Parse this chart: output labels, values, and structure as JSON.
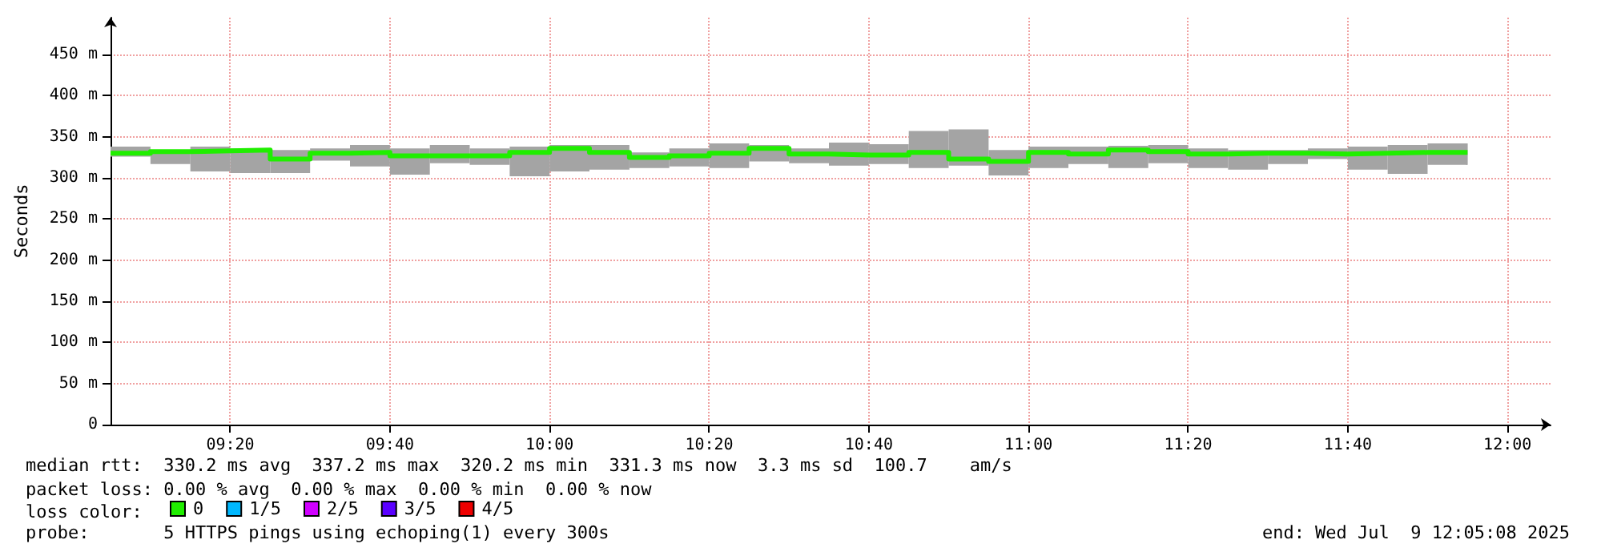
{
  "chart_data": {
    "type": "step",
    "ylabel": "Seconds",
    "legend_title": "loss color:",
    "legend": "bottom",
    "grid": true,
    "annotations": [
      "median rtt:  330.2 ms avg  337.2 ms max  320.2 ms min  331.3 ms now  3.3 ms sd  100.7    am/s",
      "packet loss: 0.00 % avg  0.00 % max  0.00 % min  0.00 % now",
      "probe:       5 HTTPS pings using echoping(1) every 300s",
      "end: Wed Jul  9 12:05:08 2025"
    ],
    "x": [
      9.0833,
      9.1667,
      9.25,
      9.3333,
      9.4167,
      9.5,
      9.5833,
      9.6667,
      9.75,
      9.8333,
      9.9167,
      10,
      10.0833,
      10.1667,
      10.25,
      10.3333,
      10.4167,
      10.5,
      10.5833,
      10.6667,
      10.75,
      10.8333,
      10.9167,
      11,
      11.0833,
      11.1667,
      11.25,
      11.3333,
      11.4167,
      11.5,
      11.5833,
      11.6667,
      11.75,
      11.8333,
      11.9167
    ],
    "xlim": [
      9.0833,
      12.09
    ],
    "xticks": [
      {
        "value": 9.3333,
        "label": "09:20"
      },
      {
        "value": 9.6667,
        "label": "09:40"
      },
      {
        "value": 10,
        "label": "10:00"
      },
      {
        "value": 10.3333,
        "label": "10:20"
      },
      {
        "value": 10.6667,
        "label": "10:40"
      },
      {
        "value": 11,
        "label": "11:00"
      },
      {
        "value": 11.3333,
        "label": "11:20"
      },
      {
        "value": 11.6667,
        "label": "11:40"
      },
      {
        "value": 12,
        "label": "12:00"
      }
    ],
    "ylim": [
      0,
      495
    ],
    "yticks": [
      0,
      {
        "value": 50,
        "label": "50 m"
      },
      {
        "value": 100,
        "label": "100 m"
      },
      {
        "value": 150,
        "label": "150 m"
      },
      {
        "value": 200,
        "label": "200 m"
      },
      {
        "value": 250,
        "label": "250 m"
      },
      {
        "value": 300,
        "label": "300 m"
      },
      {
        "value": 350,
        "label": "350 m"
      },
      {
        "value": 400,
        "label": "400 m"
      },
      {
        "value": 450,
        "label": "450 m"
      }
    ],
    "series": [
      {
        "name": "0",
        "color": "#20ee00",
        "values": [
          330,
          332,
          333,
          334,
          323,
          330,
          331,
          327,
          327,
          327,
          331,
          336,
          331,
          325,
          327,
          330,
          336,
          329,
          328,
          328,
          331,
          323,
          320,
          331,
          329,
          334,
          332,
          329,
          330,
          330,
          329,
          330,
          331,
          331,
          331
        ],
        "upper": [
          338,
          334,
          338,
          336,
          334,
          336,
          340,
          336,
          340,
          336,
          338,
          340,
          340,
          331,
          336,
          342,
          340,
          336,
          343,
          341,
          357,
          359,
          334,
          338,
          338,
          339,
          340,
          336,
          334,
          334,
          336,
          338,
          340,
          342,
          342
        ],
        "lower": [
          326,
          317,
          308,
          306,
          306,
          321,
          314,
          304,
          318,
          316,
          302,
          308,
          310,
          312,
          314,
          312,
          320,
          318,
          315,
          317,
          312,
          315,
          303,
          312,
          317,
          312,
          318,
          312,
          310,
          317,
          323,
          310,
          305,
          316,
          316
        ]
      },
      {
        "name": "1/5",
        "color": "#00b8ff",
        "values": [
          null,
          null,
          null,
          null,
          null,
          null,
          null,
          null,
          null,
          null,
          null,
          null,
          null,
          null,
          null,
          null,
          null,
          null,
          null,
          null,
          null,
          null,
          null,
          null,
          null,
          null,
          null,
          null,
          null,
          null,
          null,
          null,
          null,
          null,
          null
        ]
      },
      {
        "name": "2/5",
        "color": "#d000ff",
        "values": [
          null,
          null,
          null,
          null,
          null,
          null,
          null,
          null,
          null,
          null,
          null,
          null,
          null,
          null,
          null,
          null,
          null,
          null,
          null,
          null,
          null,
          null,
          null,
          null,
          null,
          null,
          null,
          null,
          null,
          null,
          null,
          null,
          null,
          null,
          null
        ]
      },
      {
        "name": "3/5",
        "color": "#5a00ff",
        "values": [
          null,
          null,
          null,
          null,
          null,
          null,
          null,
          null,
          null,
          null,
          null,
          null,
          null,
          null,
          null,
          null,
          null,
          null,
          null,
          null,
          null,
          null,
          null,
          null,
          null,
          null,
          null,
          null,
          null,
          null,
          null,
          null,
          null,
          null,
          null
        ]
      },
      {
        "name": "4/5",
        "color": "#ee0000",
        "values": [
          null,
          null,
          null,
          null,
          null,
          null,
          null,
          null,
          null,
          null,
          null,
          null,
          null,
          null,
          null,
          null,
          null,
          null,
          null,
          null,
          null,
          null,
          null,
          null,
          null,
          null,
          null,
          null,
          null,
          null,
          null,
          null,
          null,
          null,
          null
        ]
      }
    ]
  }
}
